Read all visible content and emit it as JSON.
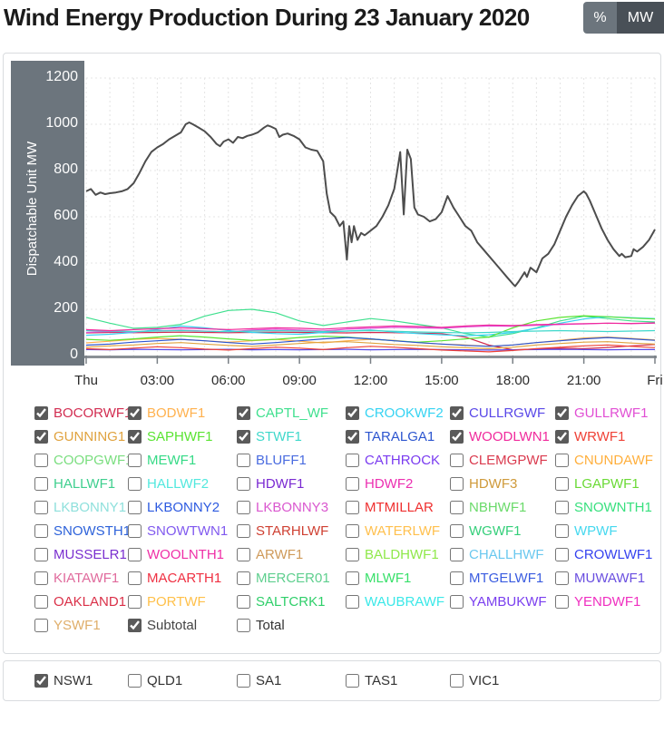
{
  "header": {
    "title": "Wind Energy Production During 23 January 2020",
    "unit_toggle": {
      "percent_label": "%",
      "mw_label": "MW"
    }
  },
  "colors": {
    "axis_panel": "#6c757d",
    "axis_bar": "#8a9096",
    "grid": "#e4e4e4",
    "subtotal_line": "#4d4d4d",
    "percent_button_bg": "#6c757d",
    "mw_button_bg": "#495057"
  },
  "chart_data": {
    "type": "line",
    "title": "Wind Energy Production During 23 January 2020",
    "ylabel": "Dispatchable Unit MW",
    "ylim": [
      0,
      1200
    ],
    "yticks": [
      0,
      200,
      400,
      600,
      800,
      1000,
      1200
    ],
    "xlim_hours": [
      0,
      24
    ],
    "xtick_hours": [
      0,
      3,
      6,
      9,
      12,
      15,
      18,
      21,
      24
    ],
    "xtick_labels": [
      "Thu",
      "03:00",
      "06:00",
      "09:00",
      "12:00",
      "15:00",
      "18:00",
      "21:00",
      "Fri"
    ],
    "grid": "dashed, hourly vertical and 200 MW horizontal",
    "legend_position": "below",
    "series": [
      {
        "name": "Subtotal",
        "color": "#4d4d4d",
        "width": 2,
        "x": [
          0,
          0.2,
          0.4,
          0.6,
          0.8,
          1,
          1.25,
          1.5,
          1.75,
          2,
          2.25,
          2.5,
          2.75,
          3,
          3.25,
          3.5,
          3.75,
          4,
          4.2,
          4.35,
          4.5,
          4.75,
          5,
          5.25,
          5.5,
          5.65,
          5.8,
          6,
          6.2,
          6.4,
          6.6,
          6.8,
          7,
          7.25,
          7.5,
          7.65,
          7.8,
          8,
          8.15,
          8.3,
          8.5,
          8.75,
          9,
          9.25,
          9.5,
          9.75,
          10,
          10.15,
          10.3,
          10.5,
          10.7,
          10.85,
          11,
          11.1,
          11.2,
          11.3,
          11.45,
          11.6,
          11.75,
          12,
          12.25,
          12.5,
          12.75,
          13,
          13.1,
          13.25,
          13.4,
          13.55,
          13.7,
          13.85,
          14,
          14.25,
          14.5,
          14.75,
          15,
          15.25,
          15.4,
          15.5,
          15.75,
          16,
          16.25,
          16.5,
          16.75,
          17,
          17.25,
          17.5,
          17.75,
          18,
          18.1,
          18.25,
          18.5,
          18.6,
          18.75,
          19,
          19.25,
          19.5,
          19.75,
          20,
          20.25,
          20.5,
          20.75,
          21,
          21.1,
          21.25,
          21.5,
          21.75,
          22,
          22.25,
          22.5,
          22.6,
          22.75,
          23,
          23.1,
          23.25,
          23.5,
          23.75,
          24
        ],
        "values": [
          710,
          720,
          695,
          705,
          698,
          702,
          705,
          710,
          720,
          745,
          790,
          840,
          880,
          900,
          915,
          935,
          950,
          965,
          1000,
          1008,
          1000,
          985,
          970,
          945,
          915,
          905,
          925,
          935,
          920,
          945,
          940,
          950,
          955,
          965,
          985,
          995,
          990,
          980,
          945,
          955,
          960,
          950,
          935,
          900,
          890,
          885,
          840,
          700,
          620,
          600,
          560,
          580,
          415,
          560,
          490,
          560,
          500,
          530,
          520,
          540,
          560,
          600,
          650,
          720,
          780,
          880,
          610,
          890,
          850,
          640,
          610,
          600,
          580,
          590,
          620,
          690,
          660,
          640,
          600,
          560,
          540,
          490,
          460,
          430,
          400,
          370,
          340,
          310,
          300,
          320,
          360,
          340,
          380,
          360,
          420,
          440,
          480,
          540,
          600,
          650,
          690,
          710,
          700,
          670,
          610,
          550,
          500,
          460,
          430,
          440,
          425,
          430,
          460,
          450,
          470,
          500,
          545
        ]
      },
      {
        "name": "BOCORWF1",
        "color": "#d22c50",
        "width": 1.2,
        "values": [
          98,
          100,
          99,
          100,
          101,
          100,
          99,
          100,
          101,
          100,
          99,
          98,
          100,
          99,
          97,
          95,
          80,
          45,
          25,
          28,
          32,
          30,
          35,
          42,
          48
        ]
      },
      {
        "name": "BODWF1",
        "color": "#ffb14e",
        "width": 1.2,
        "values": [
          55,
          62,
          70,
          74,
          70,
          64,
          58,
          64,
          70,
          62,
          55,
          64,
          70,
          66,
          56,
          50,
          46,
          40,
          46,
          56,
          66,
          76,
          80,
          74,
          68
        ]
      },
      {
        "name": "CAPTL_WF",
        "color": "#3fe08e",
        "width": 1.2,
        "values": [
          165,
          140,
          118,
          122,
          135,
          170,
          195,
          200,
          185,
          150,
          130,
          145,
          160,
          150,
          135,
          120,
          95,
          80,
          95,
          120,
          150,
          170,
          160,
          150,
          145
        ]
      },
      {
        "name": "CROOKWF2",
        "color": "#35d3f2",
        "width": 1.2,
        "values": [
          88,
          92,
          100,
          112,
          128,
          120,
          108,
          100,
          95,
          92,
          100,
          106,
          110,
          102,
          95,
          90,
          86,
          90,
          100,
          118,
          140,
          158,
          168,
          164,
          160
        ]
      },
      {
        "name": "CULLRGWF",
        "color": "#5948e8",
        "width": 1.2,
        "values": [
          26,
          25,
          27,
          26,
          25,
          26,
          27,
          25,
          26,
          25,
          26,
          27,
          25,
          26,
          27,
          26,
          25,
          24,
          25,
          26,
          27,
          26,
          25,
          26,
          26
        ]
      },
      {
        "name": "GULLRWF1",
        "color": "#e14fd4",
        "width": 1.2,
        "values": [
          100,
          104,
          102,
          107,
          110,
          106,
          102,
          110,
          114,
          110,
          106,
          114,
          118,
          122,
          120,
          118,
          124,
          128,
          127,
          131,
          134,
          137,
          140,
          138,
          140
        ]
      },
      {
        "name": "GUNNING1",
        "color": "#e0a23e",
        "width": 1.2,
        "values": [
          36,
          42,
          46,
          52,
          56,
          50,
          44,
          40,
          46,
          52,
          58,
          60,
          54,
          48,
          44,
          38,
          34,
          30,
          36,
          46,
          52,
          58,
          60,
          54,
          50
        ]
      },
      {
        "name": "SAPHWF1",
        "color": "#5ae432",
        "width": 1.2,
        "values": [
          70,
          66,
          72,
          80,
          86,
          80,
          72,
          66,
          70,
          78,
          84,
          80,
          72,
          64,
          58,
          64,
          72,
          80,
          120,
          150,
          165,
          172,
          168,
          162,
          158
        ]
      },
      {
        "name": "STWF1",
        "color": "#3fd8cb",
        "width": 1.2,
        "values": [
          108,
          106,
          104,
          106,
          108,
          105,
          103,
          106,
          108,
          106,
          104,
          106,
          108,
          105,
          102,
          100,
          98,
          100,
          104,
          106,
          108,
          106,
          104,
          106,
          108
        ]
      },
      {
        "name": "TARALGA1",
        "color": "#2c55cf",
        "width": 1.2,
        "values": [
          45,
          50,
          58,
          64,
          70,
          64,
          56,
          50,
          56,
          64,
          72,
          78,
          72,
          64,
          56,
          50,
          44,
          40,
          46,
          56,
          64,
          72,
          78,
          72,
          66
        ]
      },
      {
        "name": "WOODLWN1",
        "color": "#f02a9c",
        "width": 1.2,
        "values": [
          112,
          108,
          112,
          116,
          120,
          116,
          112,
          116,
          120,
          118,
          114,
          120,
          124,
          128,
          126,
          122,
          128,
          132,
          130,
          134,
          136,
          138,
          140,
          139,
          141
        ]
      },
      {
        "name": "WRWF1",
        "color": "#ef4136",
        "width": 1.2,
        "values": [
          30,
          26,
          32,
          38,
          34,
          28,
          24,
          30,
          36,
          32,
          26,
          34,
          40,
          36,
          30,
          24,
          20,
          16,
          22,
          30,
          36,
          42,
          46,
          40,
          34
        ]
      }
    ]
  },
  "unit_legend": {
    "items": [
      {
        "label": "BOCORWF1",
        "color": "#d22c50",
        "checked": true
      },
      {
        "label": "BODWF1",
        "color": "#ffb14e",
        "checked": true
      },
      {
        "label": "CAPTL_WF",
        "color": "#3fe08e",
        "checked": true
      },
      {
        "label": "CROOKWF2",
        "color": "#35d3f2",
        "checked": true
      },
      {
        "label": "CULLRGWF",
        "color": "#5948e8",
        "checked": true
      },
      {
        "label": "GULLRWF1",
        "color": "#e14fd4",
        "checked": true
      },
      {
        "label": "GUNNING1",
        "color": "#e0a23e",
        "checked": true
      },
      {
        "label": "SAPHWF1",
        "color": "#5ae432",
        "checked": true
      },
      {
        "label": "STWF1",
        "color": "#3fd8cb",
        "checked": true
      },
      {
        "label": "TARALGA1",
        "color": "#2c55cf",
        "checked": true
      },
      {
        "label": "WOODLWN1",
        "color": "#f02a9c",
        "checked": true
      },
      {
        "label": "WRWF1",
        "color": "#ef4136",
        "checked": true
      },
      {
        "label": "COOPGWF1",
        "color": "#7ade7f",
        "checked": false
      },
      {
        "label": "MEWF1",
        "color": "#35da86",
        "checked": false
      },
      {
        "label": "BLUFF1",
        "color": "#4a6ce0",
        "checked": false
      },
      {
        "label": "CATHROCK",
        "color": "#7a3bf0",
        "checked": false
      },
      {
        "label": "CLEMGPWF",
        "color": "#da3a4e",
        "checked": false
      },
      {
        "label": "CNUNDAWF",
        "color": "#ffaf3c",
        "checked": false
      },
      {
        "label": "HALLWF1",
        "color": "#3ecf8e",
        "checked": false
      },
      {
        "label": "HALLWF2",
        "color": "#52e8de",
        "checked": false
      },
      {
        "label": "HDWF1",
        "color": "#7a2ad2",
        "checked": false
      },
      {
        "label": "HDWF2",
        "color": "#ec2fb1",
        "checked": false
      },
      {
        "label": "HDWF3",
        "color": "#cf9a3a",
        "checked": false
      },
      {
        "label": "LGAPWF1",
        "color": "#6ada35",
        "checked": false
      },
      {
        "label": "LKBONNY1",
        "color": "#8fe0dc",
        "checked": false
      },
      {
        "label": "LKBONNY2",
        "color": "#2d5ae0",
        "checked": false
      },
      {
        "label": "LKBONNY3",
        "color": "#da58cf",
        "checked": false
      },
      {
        "label": "MTMILLAR",
        "color": "#ef2f2f",
        "checked": false
      },
      {
        "label": "NBHWF1",
        "color": "#6ada6a",
        "checked": false
      },
      {
        "label": "SNOWNTH1",
        "color": "#38e07e",
        "checked": false
      },
      {
        "label": "SNOWSTH1",
        "color": "#2d62da",
        "checked": false
      },
      {
        "label": "SNOWTWN1",
        "color": "#8059ef",
        "checked": false
      },
      {
        "label": "STARHLWF",
        "color": "#cf4032",
        "checked": false
      },
      {
        "label": "WATERLWF",
        "color": "#ffc04e",
        "checked": false
      },
      {
        "label": "WGWF1",
        "color": "#35cf7a",
        "checked": false
      },
      {
        "label": "WPWF",
        "color": "#45d8ef",
        "checked": false
      },
      {
        "label": "MUSSELR1",
        "color": "#7a2fcf",
        "checked": false
      },
      {
        "label": "WOOLNTH1",
        "color": "#ef2fa6",
        "checked": false
      },
      {
        "label": "ARWF1",
        "color": "#cf9a5a",
        "checked": false
      },
      {
        "label": "BALDHWF1",
        "color": "#8fe84a",
        "checked": false
      },
      {
        "label": "CHALLHWF",
        "color": "#6ac8ef",
        "checked": false
      },
      {
        "label": "CROWLWF1",
        "color": "#3542ef",
        "checked": false
      },
      {
        "label": "KIATAWF1",
        "color": "#e06a9c",
        "checked": false
      },
      {
        "label": "MACARTH1",
        "color": "#ef3042",
        "checked": false
      },
      {
        "label": "MERCER01",
        "color": "#5ecf8e",
        "checked": false
      },
      {
        "label": "MLWF1",
        "color": "#38e06a",
        "checked": false
      },
      {
        "label": "MTGELWF1",
        "color": "#3a5ce0",
        "checked": false
      },
      {
        "label": "MUWAWF1",
        "color": "#6a4fe0",
        "checked": false
      },
      {
        "label": "OAKLAND1",
        "color": "#da3048",
        "checked": false
      },
      {
        "label": "PORTWF",
        "color": "#ffc04a",
        "checked": false
      },
      {
        "label": "SALTCRK1",
        "color": "#2fcf6a",
        "checked": false
      },
      {
        "label": "WAUBRAWF",
        "color": "#3ae8e8",
        "checked": false
      },
      {
        "label": "YAMBUKWF",
        "color": "#7a3fef",
        "checked": false
      },
      {
        "label": "YENDWF1",
        "color": "#ef2fc0",
        "checked": false
      },
      {
        "label": "YSWF1",
        "color": "#dfae6a",
        "checked": false
      },
      {
        "label": "Subtotal",
        "color": "#444444",
        "checked": true
      },
      {
        "label": "Total",
        "color": "#333333",
        "checked": false
      }
    ]
  },
  "region_legend": {
    "items": [
      {
        "label": "NSW1",
        "color": "#333333",
        "checked": true
      },
      {
        "label": "QLD1",
        "color": "#333333",
        "checked": false
      },
      {
        "label": "SA1",
        "color": "#333333",
        "checked": false
      },
      {
        "label": "TAS1",
        "color": "#333333",
        "checked": false
      },
      {
        "label": "VIC1",
        "color": "#333333",
        "checked": false
      }
    ]
  }
}
